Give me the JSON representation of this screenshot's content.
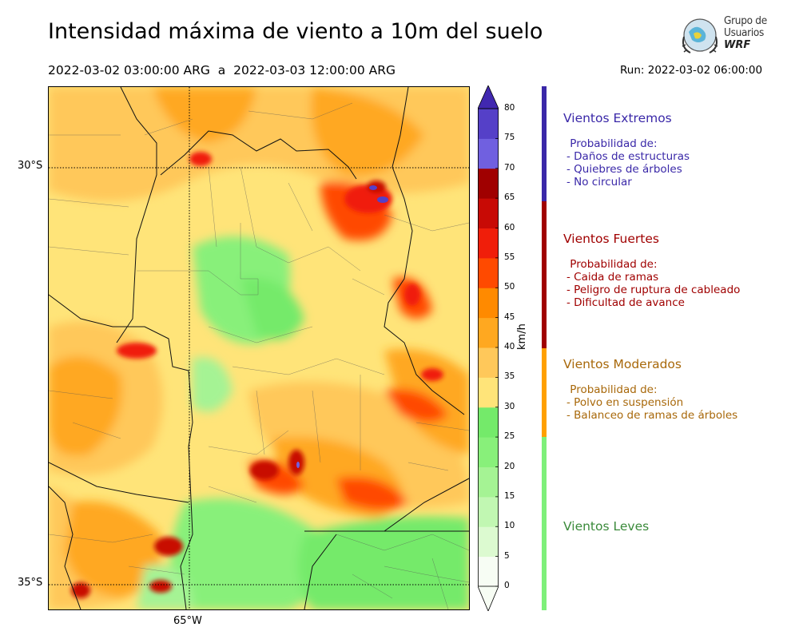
{
  "header": {
    "title": "Intensidad máxima de viento a 10m del suelo",
    "period": "2022-03-02 03:00:00 ARG  a  2022-03-03 12:00:00 ARG",
    "run": "Run: 2022-03-02 06:00:00"
  },
  "logo": {
    "line1": "Grupo de",
    "line2": "Usuarios",
    "line3": "WRF"
  },
  "map": {
    "lat_labels": [
      "30°S",
      "35°S"
    ],
    "lon_labels": [
      "65°W"
    ]
  },
  "colorbar": {
    "unit": "km/h",
    "ticks": [
      "0",
      "5",
      "10",
      "15",
      "20",
      "25",
      "30",
      "35",
      "40",
      "45",
      "50",
      "55",
      "60",
      "65",
      "70",
      "75",
      "80"
    ],
    "level_colors": [
      "#f7fdf4",
      "#dcfad0",
      "#c1f7b2",
      "#a5f394",
      "#88f07a",
      "#74ea6a",
      "#ffe479",
      "#ffc85a",
      "#ffa820",
      "#ff8a00",
      "#ff4a00",
      "#f01e0a",
      "#c80a05",
      "#a00000",
      "#7060e0",
      "#5540c8",
      "#4128b0"
    ]
  },
  "categories": [
    {
      "name": "Vientos Extremos",
      "color": "#3a28a8",
      "bar": "#3a28a8",
      "desc": " Probabilidad de:\n- Daños de estructuras\n- Quiebres de árboles\n- No circular"
    },
    {
      "name": "Vientos Fuertes",
      "color": "#a00000",
      "bar": "#a00000",
      "desc": " Probabilidad de:\n- Caida de ramas\n- Peligro de ruptura de cableado\n- Dificultad de avance"
    },
    {
      "name": "Vientos Moderados",
      "color": "#a8680a",
      "bar": "#ffa000",
      "desc": " Probabilidad de:\n- Polvo en suspensión\n- Balanceo de ramas de árboles"
    },
    {
      "name": "Vientos Leves",
      "color": "#3a8a3a",
      "bar": "#7ef07a",
      "desc": ""
    }
  ]
}
